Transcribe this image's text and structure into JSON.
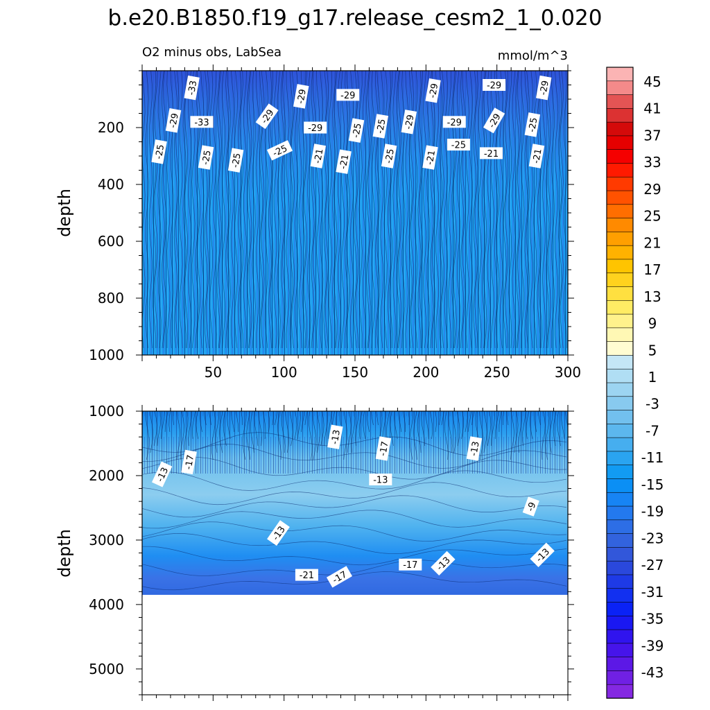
{
  "chart_data": {
    "type": "heatmap",
    "title": "b.e20.B1850.f19_g17.release_cesm2_1_0.020",
    "subtitle_left": "O2 minus obs, LabSea",
    "subtitle_right": "mmol/m^3",
    "colorbar": {
      "labels": [
        "45",
        "41",
        "37",
        "33",
        "29",
        "25",
        "21",
        "17",
        "13",
        "9",
        "5",
        "1",
        "-3",
        "-7",
        "-11",
        "-15",
        "-19",
        "-23",
        "-27",
        "-31",
        "-35",
        "-39",
        "-43"
      ],
      "colors": [
        "#fbb4b4",
        "#f48a8a",
        "#e45454",
        "#dc3232",
        "#d40a0a",
        "#e60000",
        "#f50000",
        "#ff1a00",
        "#ff3a00",
        "#ff5200",
        "#ff6e00",
        "#ff8a00",
        "#ff9f00",
        "#ffb200",
        "#ffc400",
        "#ffd21e",
        "#ffe040",
        "#ffec64",
        "#fff28c",
        "#fff8b4",
        "#fffcd2",
        "#c4e6f6",
        "#b0def4",
        "#9cd4f1",
        "#88caef",
        "#72c0ee",
        "#5cb7ee",
        "#46aeef",
        "#2aa4f0",
        "#129bf2",
        "#0b8ff5",
        "#1784f4",
        "#2379ee",
        "#2d6ee6",
        "#3263de",
        "#3257da",
        "#2a48dc",
        "#1e3ae6",
        "#1230f0",
        "#0a22f6",
        "#1a18f2",
        "#3014ee",
        "#4614ea",
        "#5c18e6",
        "#7020e4",
        "#8428e2"
      ]
    },
    "panels": [
      {
        "name": "upper",
        "xlim": [
          0,
          300
        ],
        "ylim": [
          1000,
          0
        ],
        "xticks": [
          "50",
          "100",
          "150",
          "200",
          "250",
          "300"
        ],
        "xtick_values": [
          50,
          100,
          150,
          200,
          250,
          300
        ],
        "yticks": [
          "200",
          "400",
          "600",
          "800",
          "1000"
        ],
        "ytick_values": [
          200,
          400,
          600,
          800,
          1000
        ],
        "ylabel": "depth",
        "contour_labels": [
          {
            "text": "-33",
            "x": 35,
            "y": 60,
            "rot": -80
          },
          {
            "text": "-29",
            "x": 112,
            "y": 90,
            "rot": -80
          },
          {
            "text": "-29",
            "x": 145,
            "y": 85,
            "rot": 0
          },
          {
            "text": "-29",
            "x": 205,
            "y": 70,
            "rot": -80
          },
          {
            "text": "-29",
            "x": 248,
            "y": 50,
            "rot": 0
          },
          {
            "text": "-29",
            "x": 283,
            "y": 60,
            "rot": -80
          },
          {
            "text": "-29",
            "x": 22,
            "y": 175,
            "rot": -80
          },
          {
            "text": "-33",
            "x": 42,
            "y": 180,
            "rot": 0
          },
          {
            "text": "-29",
            "x": 88,
            "y": 160,
            "rot": -55
          },
          {
            "text": "-29",
            "x": 122,
            "y": 200,
            "rot": 0
          },
          {
            "text": "-25",
            "x": 151,
            "y": 210,
            "rot": -80
          },
          {
            "text": "-25",
            "x": 168,
            "y": 195,
            "rot": -80
          },
          {
            "text": "-29",
            "x": 188,
            "y": 180,
            "rot": -80
          },
          {
            "text": "-29",
            "x": 220,
            "y": 180,
            "rot": 0
          },
          {
            "text": "-29",
            "x": 248,
            "y": 175,
            "rot": -60
          },
          {
            "text": "-25",
            "x": 275,
            "y": 190,
            "rot": -80
          },
          {
            "text": "-25",
            "x": 12,
            "y": 285,
            "rot": -80
          },
          {
            "text": "-25",
            "x": 45,
            "y": 305,
            "rot": -80
          },
          {
            "text": "-25",
            "x": 66,
            "y": 315,
            "rot": -80
          },
          {
            "text": "-25",
            "x": 97,
            "y": 280,
            "rot": -25
          },
          {
            "text": "-21",
            "x": 124,
            "y": 300,
            "rot": -80
          },
          {
            "text": "-21",
            "x": 142,
            "y": 320,
            "rot": -80
          },
          {
            "text": "-25",
            "x": 174,
            "y": 300,
            "rot": -80
          },
          {
            "text": "-21",
            "x": 203,
            "y": 305,
            "rot": -80
          },
          {
            "text": "-25",
            "x": 223,
            "y": 260,
            "rot": 0
          },
          {
            "text": "-21",
            "x": 246,
            "y": 290,
            "rot": 0
          },
          {
            "text": "-21",
            "x": 278,
            "y": 300,
            "rot": -80
          }
        ]
      },
      {
        "name": "lower",
        "xlim": [
          0,
          300
        ],
        "ylim": [
          5400,
          1000
        ],
        "yticks": [
          "1000",
          "2000",
          "3000",
          "4000",
          "5000"
        ],
        "ytick_values": [
          1000,
          2000,
          3000,
          4000,
          5000
        ],
        "ylabel": "depth",
        "bottom_depth": 3850,
        "contour_labels": [
          {
            "text": "-13",
            "x": 136,
            "y": 1400,
            "rot": -80
          },
          {
            "text": "-17",
            "x": 170,
            "y": 1580,
            "rot": -80
          },
          {
            "text": "-13",
            "x": 234,
            "y": 1580,
            "rot": -80
          },
          {
            "text": "-17",
            "x": 33,
            "y": 1790,
            "rot": -80
          },
          {
            "text": "-13",
            "x": 14,
            "y": 1980,
            "rot": -65
          },
          {
            "text": "-13",
            "x": 168,
            "y": 2060,
            "rot": 0
          },
          {
            "text": "-9",
            "x": 274,
            "y": 2480,
            "rot": -70
          },
          {
            "text": "-13",
            "x": 96,
            "y": 2890,
            "rot": -55
          },
          {
            "text": "-13",
            "x": 282,
            "y": 3230,
            "rot": -45
          },
          {
            "text": "-17",
            "x": 189,
            "y": 3380,
            "rot": 0
          },
          {
            "text": "-13",
            "x": 212,
            "y": 3360,
            "rot": -45
          },
          {
            "text": "-21",
            "x": 116,
            "y": 3540,
            "rot": 0
          },
          {
            "text": "-17",
            "x": 139,
            "y": 3570,
            "rot": -30
          }
        ]
      }
    ]
  }
}
